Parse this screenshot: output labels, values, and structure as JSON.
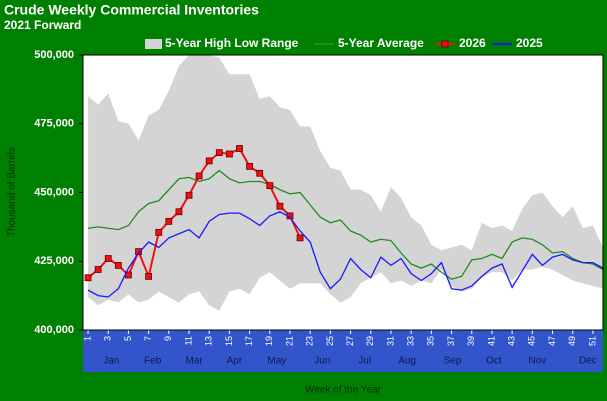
{
  "chart_data": {
    "type": "line",
    "title": "Crude Weekly Commercial  Inventories",
    "subtitle": "2021 Forward",
    "x_label": "Week of the Year",
    "y_label": "Thousand of Barrels",
    "x": [
      1,
      2,
      3,
      4,
      5,
      6,
      7,
      8,
      9,
      10,
      11,
      12,
      13,
      14,
      15,
      16,
      17,
      18,
      19,
      20,
      21,
      22,
      23,
      24,
      25,
      26,
      27,
      28,
      29,
      30,
      31,
      32,
      33,
      34,
      35,
      36,
      37,
      38,
      39,
      40,
      41,
      42,
      43,
      44,
      45,
      46,
      47,
      48,
      49,
      50,
      51,
      52
    ],
    "xlim": [
      0.5,
      52
    ],
    "xticks": [
      1,
      3,
      5,
      7,
      9,
      11,
      13,
      15,
      17,
      19,
      21,
      23,
      25,
      27,
      29,
      31,
      33,
      35,
      37,
      39,
      41,
      43,
      45,
      47,
      49,
      51
    ],
    "month_ticks": [
      {
        "value": 3.3,
        "label": "Jan"
      },
      {
        "value": 7.4,
        "label": "Feb"
      },
      {
        "value": 11.5,
        "label": "Mar"
      },
      {
        "value": 15.5,
        "label": "Apr"
      },
      {
        "value": 19.7,
        "label": "May"
      },
      {
        "value": 24.2,
        "label": "Jun"
      },
      {
        "value": 28.4,
        "label": "Jul"
      },
      {
        "value": 32.6,
        "label": "Aug"
      },
      {
        "value": 37.1,
        "label": "Sep"
      },
      {
        "value": 41.2,
        "label": "Oct"
      },
      {
        "value": 45.5,
        "label": "Nov"
      },
      {
        "value": 50.5,
        "label": "Dec"
      }
    ],
    "ylim": [
      400000,
      500000
    ],
    "yticks": [
      {
        "value": 400000,
        "label": "400,000"
      },
      {
        "value": 425000,
        "label": "425,000"
      },
      {
        "value": 450000,
        "label": "450,000"
      },
      {
        "value": 475000,
        "label": "475,000"
      },
      {
        "value": 500000,
        "label": "500,000"
      }
    ],
    "series": [
      {
        "name": "5-Year High Low Range",
        "color": "#d4d4d4",
        "kind": "range",
        "high": [
          485000,
          482000,
          486000,
          476000,
          475000,
          469000,
          478000,
          480000,
          487000,
          496000,
          500000,
          500000,
          500000,
          499000,
          493000,
          493000,
          493000,
          484000,
          485000,
          481000,
          480000,
          474000,
          474000,
          465000,
          459000,
          458000,
          451000,
          451000,
          449000,
          443000,
          452000,
          448000,
          441000,
          438000,
          431000,
          429000,
          430000,
          431000,
          429000,
          439000,
          437000,
          438000,
          436000,
          444000,
          449000,
          450000,
          445000,
          441000,
          445000,
          437000,
          438000,
          430000
        ],
        "low": [
          412000,
          409000,
          411000,
          410000,
          413000,
          410000,
          411000,
          414000,
          412000,
          410000,
          413000,
          414000,
          409000,
          407000,
          414000,
          415000,
          413000,
          419000,
          421000,
          418000,
          415000,
          417000,
          417000,
          417000,
          413000,
          410000,
          412000,
          417000,
          419000,
          421000,
          417000,
          418000,
          416000,
          418000,
          417000,
          422000,
          416000,
          414000,
          415000,
          419000,
          421000,
          421000,
          418000,
          422000,
          422000,
          423000,
          422000,
          420000,
          418000,
          417000,
          416000,
          415000
        ]
      },
      {
        "name": "5-Year Average",
        "color": "#228b22",
        "values": [
          437000,
          437500,
          437000,
          436500,
          438000,
          443000,
          446000,
          447000,
          451000,
          455000,
          455500,
          454000,
          455000,
          458000,
          455000,
          453500,
          454000,
          454000,
          453000,
          451000,
          449500,
          450000,
          445500,
          441000,
          439000,
          440000,
          436000,
          434500,
          432000,
          433000,
          432500,
          428000,
          424000,
          422500,
          424000,
          421000,
          418500,
          419500,
          425500,
          426000,
          427500,
          426000,
          432000,
          433500,
          433000,
          431000,
          428000,
          428500,
          426000,
          424500,
          424000,
          422000
        ]
      },
      {
        "name": "2026",
        "color": "#ee1111",
        "marker": "square",
        "values": [
          419000,
          422000,
          426000,
          423500,
          420000,
          428500,
          419500,
          435500,
          439500,
          443000,
          449000,
          456000,
          461500,
          464500,
          464000,
          466000,
          459500,
          457000,
          452500,
          445000,
          441500,
          433500,
          null,
          null,
          null,
          null,
          null,
          null,
          null,
          null,
          null,
          null,
          null,
          null,
          null,
          null,
          null,
          null,
          null,
          null,
          null,
          null,
          null,
          null,
          null,
          null,
          null,
          null,
          null,
          null,
          null,
          null
        ]
      },
      {
        "name": "2025",
        "color": "#1a1aff",
        "values": [
          414500,
          412500,
          412000,
          415000,
          422500,
          428000,
          432000,
          430000,
          433500,
          435000,
          436500,
          433500,
          439500,
          442000,
          442500,
          442500,
          440500,
          438000,
          441500,
          443000,
          441000,
          436000,
          432000,
          421000,
          415000,
          418500,
          426000,
          422000,
          419000,
          426500,
          423500,
          426000,
          420500,
          418000,
          420500,
          424500,
          415000,
          414500,
          416000,
          419500,
          422500,
          424000,
          415500,
          421500,
          427500,
          423500,
          426500,
          427500,
          425500,
          424500,
          424500,
          422500
        ]
      }
    ]
  }
}
